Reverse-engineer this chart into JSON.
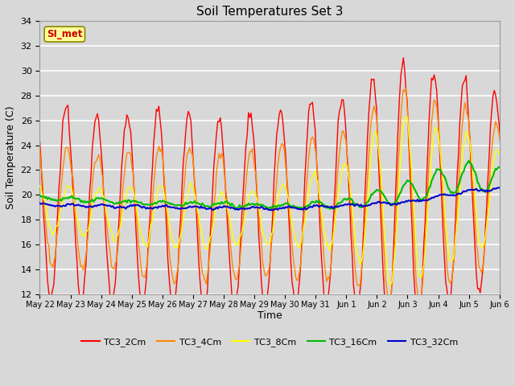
{
  "title": "Soil Temperatures Set 3",
  "xlabel": "Time",
  "ylabel": "Soil Temperature (C)",
  "ylim": [
    12,
    34
  ],
  "yticks": [
    12,
    14,
    16,
    18,
    20,
    22,
    24,
    26,
    28,
    30,
    32,
    34
  ],
  "series": [
    "TC3_2Cm",
    "TC3_4Cm",
    "TC3_8Cm",
    "TC3_16Cm",
    "TC3_32Cm"
  ],
  "colors": [
    "#ff0000",
    "#ff8800",
    "#ffff00",
    "#00bb00",
    "#0000cc"
  ],
  "linewidths": [
    1.0,
    1.0,
    1.0,
    1.5,
    1.5
  ],
  "background_color": "#d8d8d8",
  "plot_bg_color": "#d8d8d8",
  "grid_color": "#ffffff",
  "xtick_labels": [
    "May 22",
    "May 23",
    "May 24",
    "May 25",
    "May 26",
    "May 27",
    "May 28",
    "May 29",
    "May 30",
    "May 31",
    "Jun 1",
    "Jun 2",
    "Jun 3",
    "Jun 4",
    "Jun 5",
    "Jun 6"
  ],
  "annotation_text": "SI_met",
  "annotation_color": "#cc0000",
  "annotation_bg": "#ffff99",
  "annotation_border": "#888800"
}
